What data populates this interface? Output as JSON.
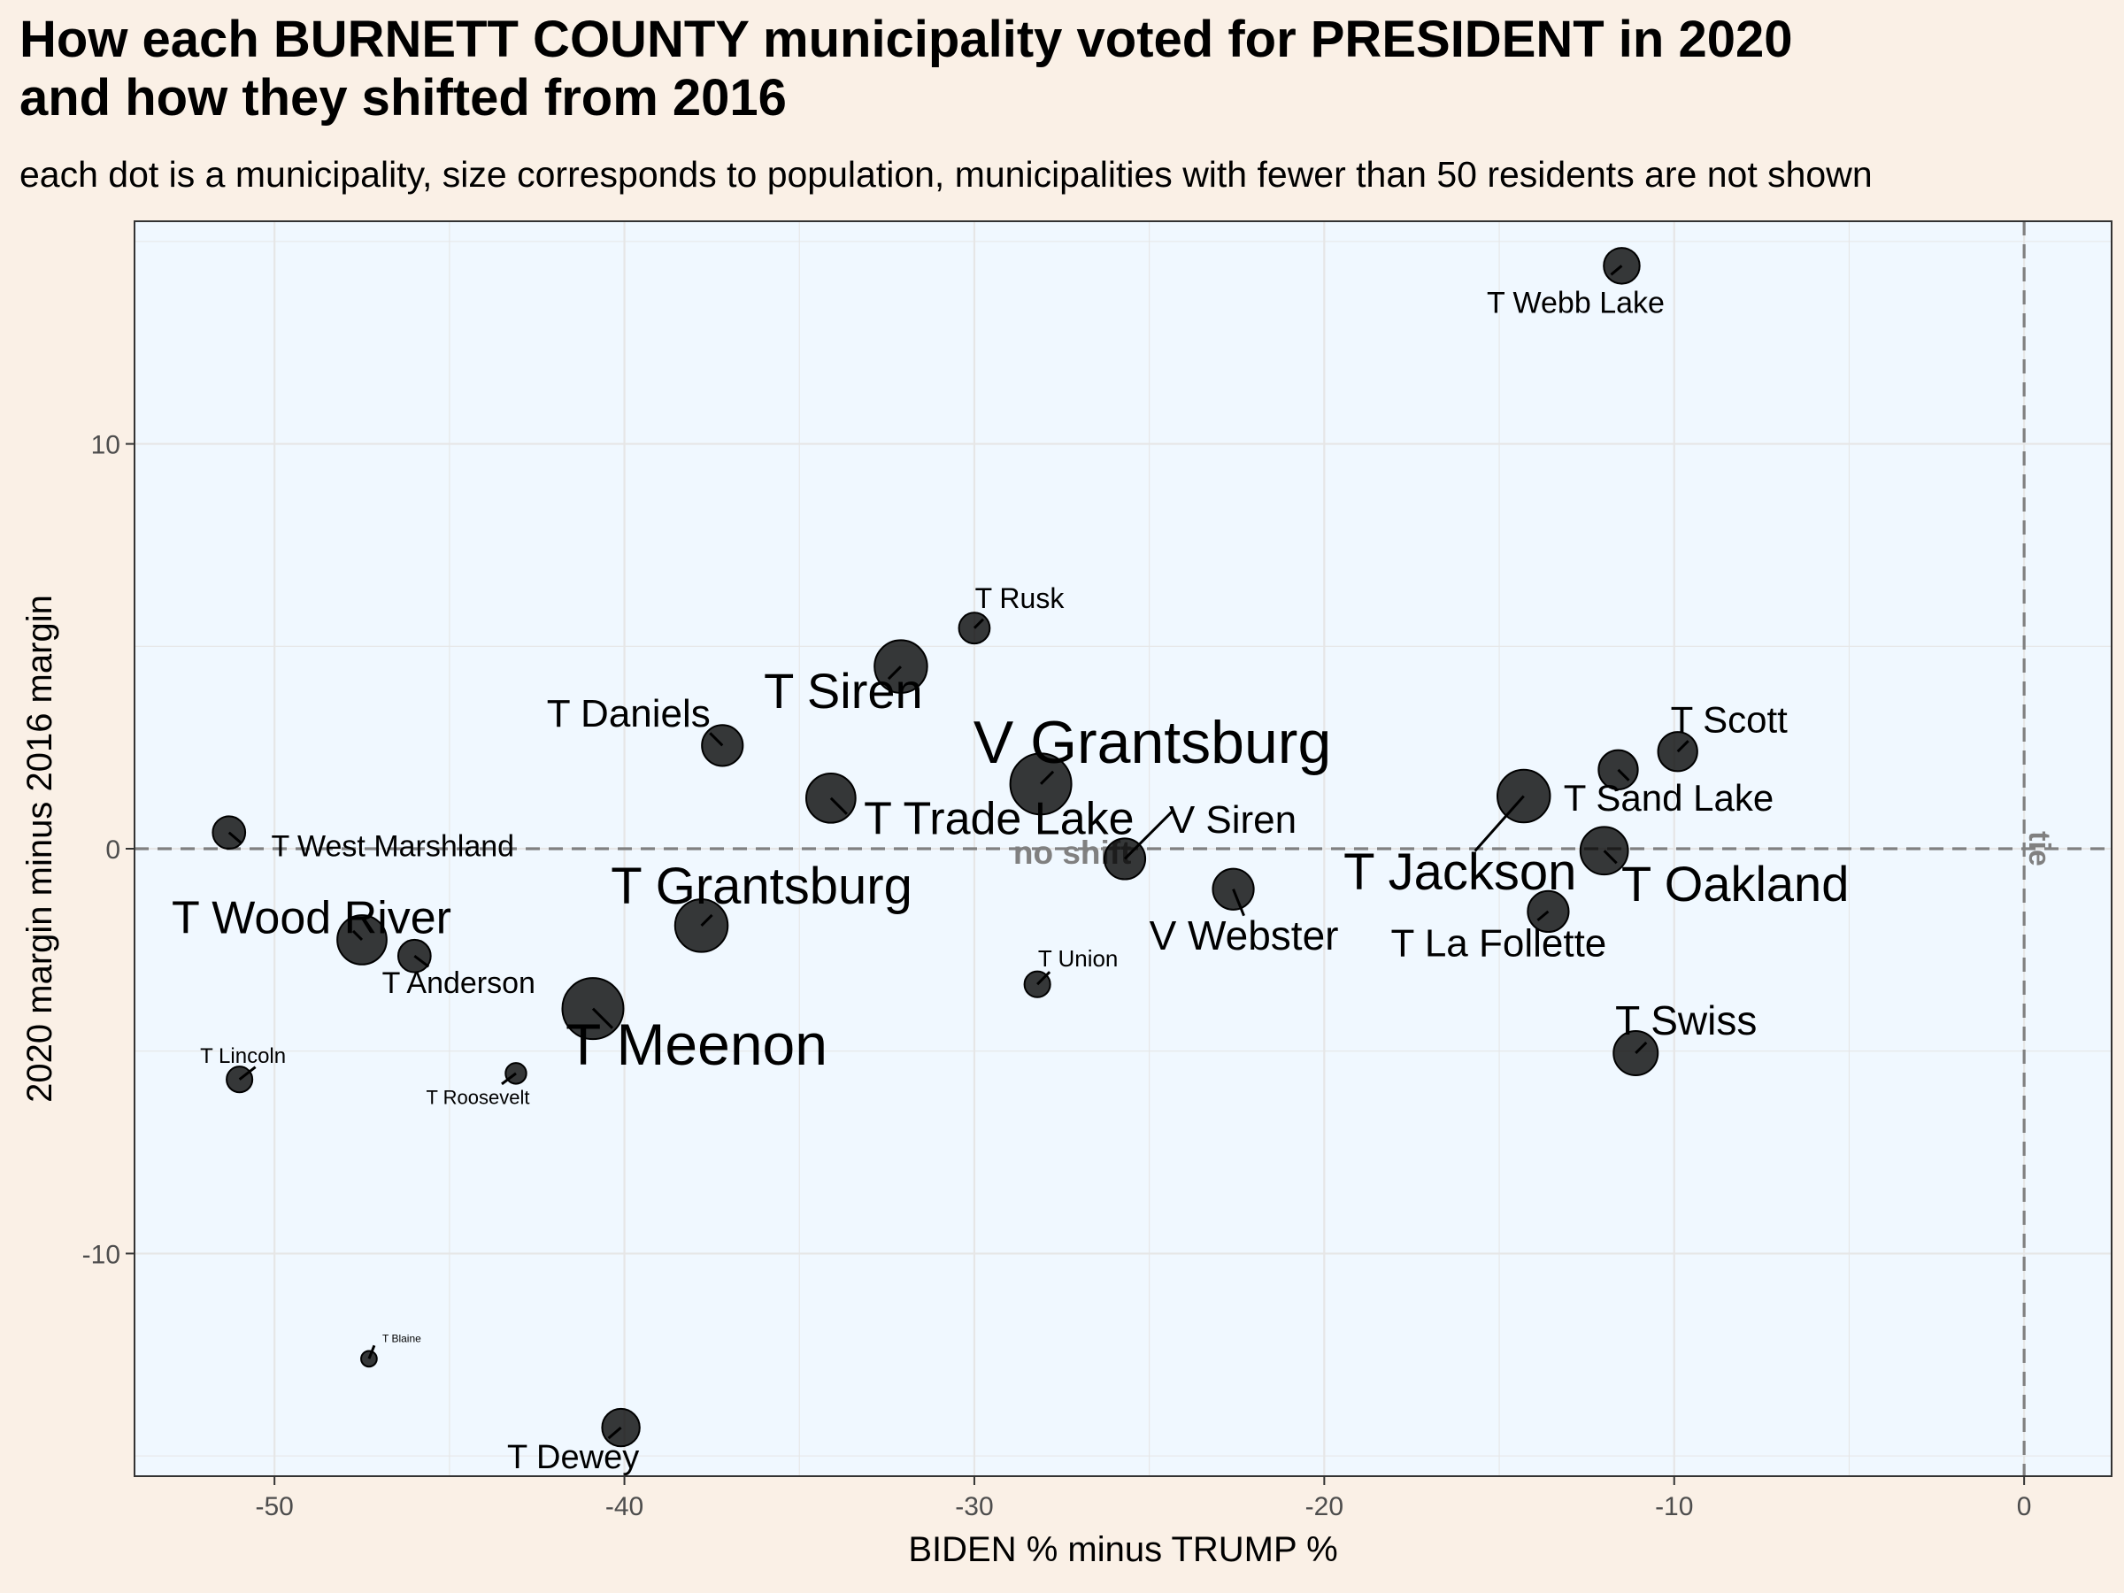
{
  "chart_data": {
    "type": "scatter",
    "title": "How each BURNETT COUNTY municipality voted for PRESIDENT in 2020 and how they shifted from 2016",
    "title_lines": [
      "How each BURNETT COUNTY municipality voted for PRESIDENT in 2020",
      "and how they shifted from 2016"
    ],
    "subtitle": "each dot is a municipality, size corresponds to population, municipalities with fewer than 50 residents are not shown",
    "xlabel": "BIDEN % minus TRUMP %",
    "ylabel": "2020 margin minus 2016 margin",
    "xlim": [
      -54,
      2.5
    ],
    "ylim": [
      -15.5,
      15.5
    ],
    "x_ticks": [
      -50,
      -40,
      -30,
      -20,
      -10,
      0
    ],
    "y_ticks": [
      -10,
      0,
      10
    ],
    "grid": true,
    "reference_lines": [
      {
        "axis": "y",
        "value": 0,
        "label": "no shift",
        "style": "dashed"
      },
      {
        "axis": "x",
        "value": 0,
        "label": "tie",
        "style": "dashed"
      }
    ],
    "points": [
      {
        "label": "T Webb Lake",
        "x": -11.5,
        "y": 14.4,
        "size": 1.5
      },
      {
        "label": "T Rusk",
        "x": -30.0,
        "y": 5.45,
        "size": 1.2
      },
      {
        "label": "T Siren",
        "x": -32.1,
        "y": 4.5,
        "size": 2.5
      },
      {
        "label": "T Daniels",
        "x": -37.2,
        "y": 2.55,
        "size": 1.8
      },
      {
        "label": "V Grantsburg",
        "x": -28.1,
        "y": 1.6,
        "size": 3.0
      },
      {
        "label": "T Scott",
        "x": -9.9,
        "y": 2.4,
        "size": 1.7
      },
      {
        "label": "T Sand Lake",
        "x": -11.6,
        "y": 1.95,
        "size": 1.7
      },
      {
        "label": "T Jackson",
        "x": -14.3,
        "y": 1.3,
        "size": 2.5
      },
      {
        "label": "T Trade Lake",
        "x": -34.1,
        "y": 1.25,
        "size": 2.3
      },
      {
        "label": "T West Marshland",
        "x": -51.3,
        "y": 0.4,
        "size": 1.3
      },
      {
        "label": "V Siren",
        "x": -25.7,
        "y": -0.25,
        "size": 1.8
      },
      {
        "label": "T Oakland",
        "x": -12.0,
        "y": -0.05,
        "size": 2.2
      },
      {
        "label": "V Webster",
        "x": -22.6,
        "y": -1.0,
        "size": 1.8
      },
      {
        "label": "T La Follette",
        "x": -13.6,
        "y": -1.55,
        "size": 1.8
      },
      {
        "label": "T Grantsburg",
        "x": -37.8,
        "y": -1.9,
        "size": 2.5
      },
      {
        "label": "T Wood River",
        "x": -47.5,
        "y": -2.25,
        "size": 2.3
      },
      {
        "label": "T Anderson",
        "x": -46.0,
        "y": -2.65,
        "size": 1.3
      },
      {
        "label": "T Union",
        "x": -28.2,
        "y": -3.35,
        "size": 0.9
      },
      {
        "label": "T Meenon",
        "x": -40.9,
        "y": -3.95,
        "size": 3.0
      },
      {
        "label": "T Swiss",
        "x": -11.1,
        "y": -5.05,
        "size": 2.0
      },
      {
        "label": "T Lincoln",
        "x": -51.0,
        "y": -5.7,
        "size": 0.9
      },
      {
        "label": "T Roosevelt",
        "x": -43.1,
        "y": -5.55,
        "size": 0.6
      },
      {
        "label": "T Blaine",
        "x": -47.3,
        "y": -12.6,
        "size": 0.3
      },
      {
        "label": "T Dewey",
        "x": -40.1,
        "y": -14.3,
        "size": 1.6
      }
    ]
  },
  "colors": {
    "background": "#faf0e6",
    "panel": "#f0f8ff",
    "grid": "#e6e6e6",
    "point": "#000000",
    "reference": "#808080"
  }
}
